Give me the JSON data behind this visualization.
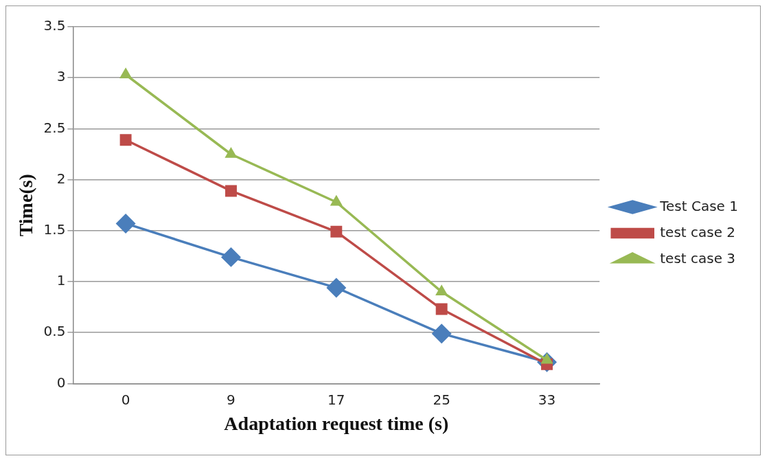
{
  "chart_data": {
    "type": "line",
    "xlabel": "Adaptation request time (s)",
    "ylabel": "Time(s)",
    "categories": [
      "0",
      "9",
      "17",
      "25",
      "33"
    ],
    "series": [
      {
        "name": "Test Case 1",
        "color": "#4a7ebb",
        "marker": "diamond",
        "values": [
          1.57,
          1.24,
          0.94,
          0.49,
          0.21
        ]
      },
      {
        "name": "test case 2",
        "color": "#be4b48",
        "marker": "square",
        "values": [
          2.39,
          1.89,
          1.49,
          0.73,
          0.19
        ]
      },
      {
        "name": "test case 3",
        "color": "#98b954",
        "marker": "triangle",
        "values": [
          3.03,
          2.25,
          1.78,
          0.9,
          0.23
        ]
      }
    ],
    "ylim": [
      0,
      3.5
    ],
    "yticks": [
      0,
      0.5,
      1,
      1.5,
      2,
      2.5,
      3,
      3.5
    ],
    "grid": "y",
    "legend": "right"
  }
}
